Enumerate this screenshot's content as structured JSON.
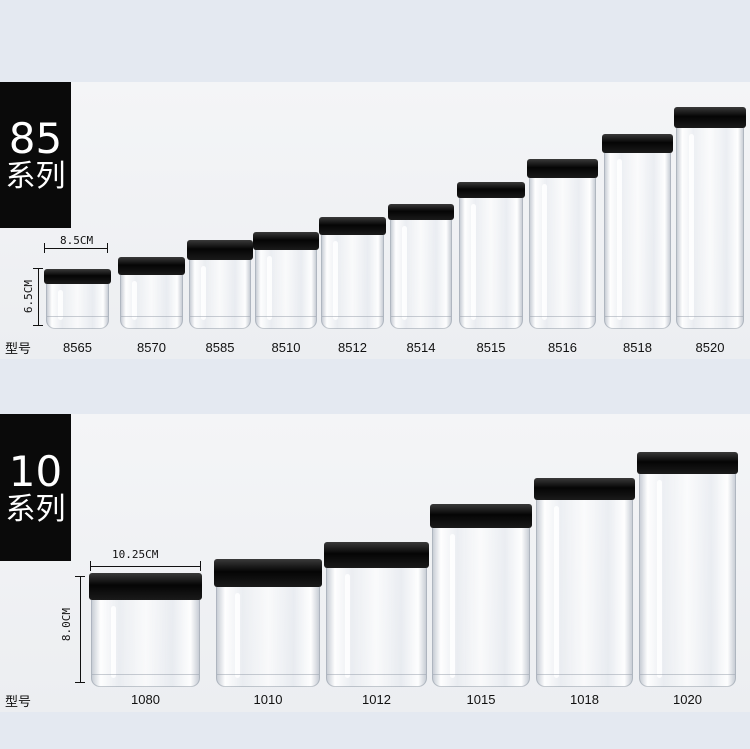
{
  "series_85": {
    "number": "85",
    "label": "系列",
    "model_prefix": "型号",
    "width_dim": "8.5CM",
    "height_dim": "6.5CM",
    "models": [
      "8565",
      "8570",
      "8585",
      "8510",
      "8512",
      "8514",
      "8515",
      "8516",
      "8518",
      "8520"
    ]
  },
  "series_10": {
    "number": "10",
    "label": "系列",
    "model_prefix": "型号",
    "width_dim": "10.25CM",
    "height_dim": "8.0CM",
    "models": [
      "1080",
      "1010",
      "1012",
      "1015",
      "1018",
      "1020"
    ]
  }
}
